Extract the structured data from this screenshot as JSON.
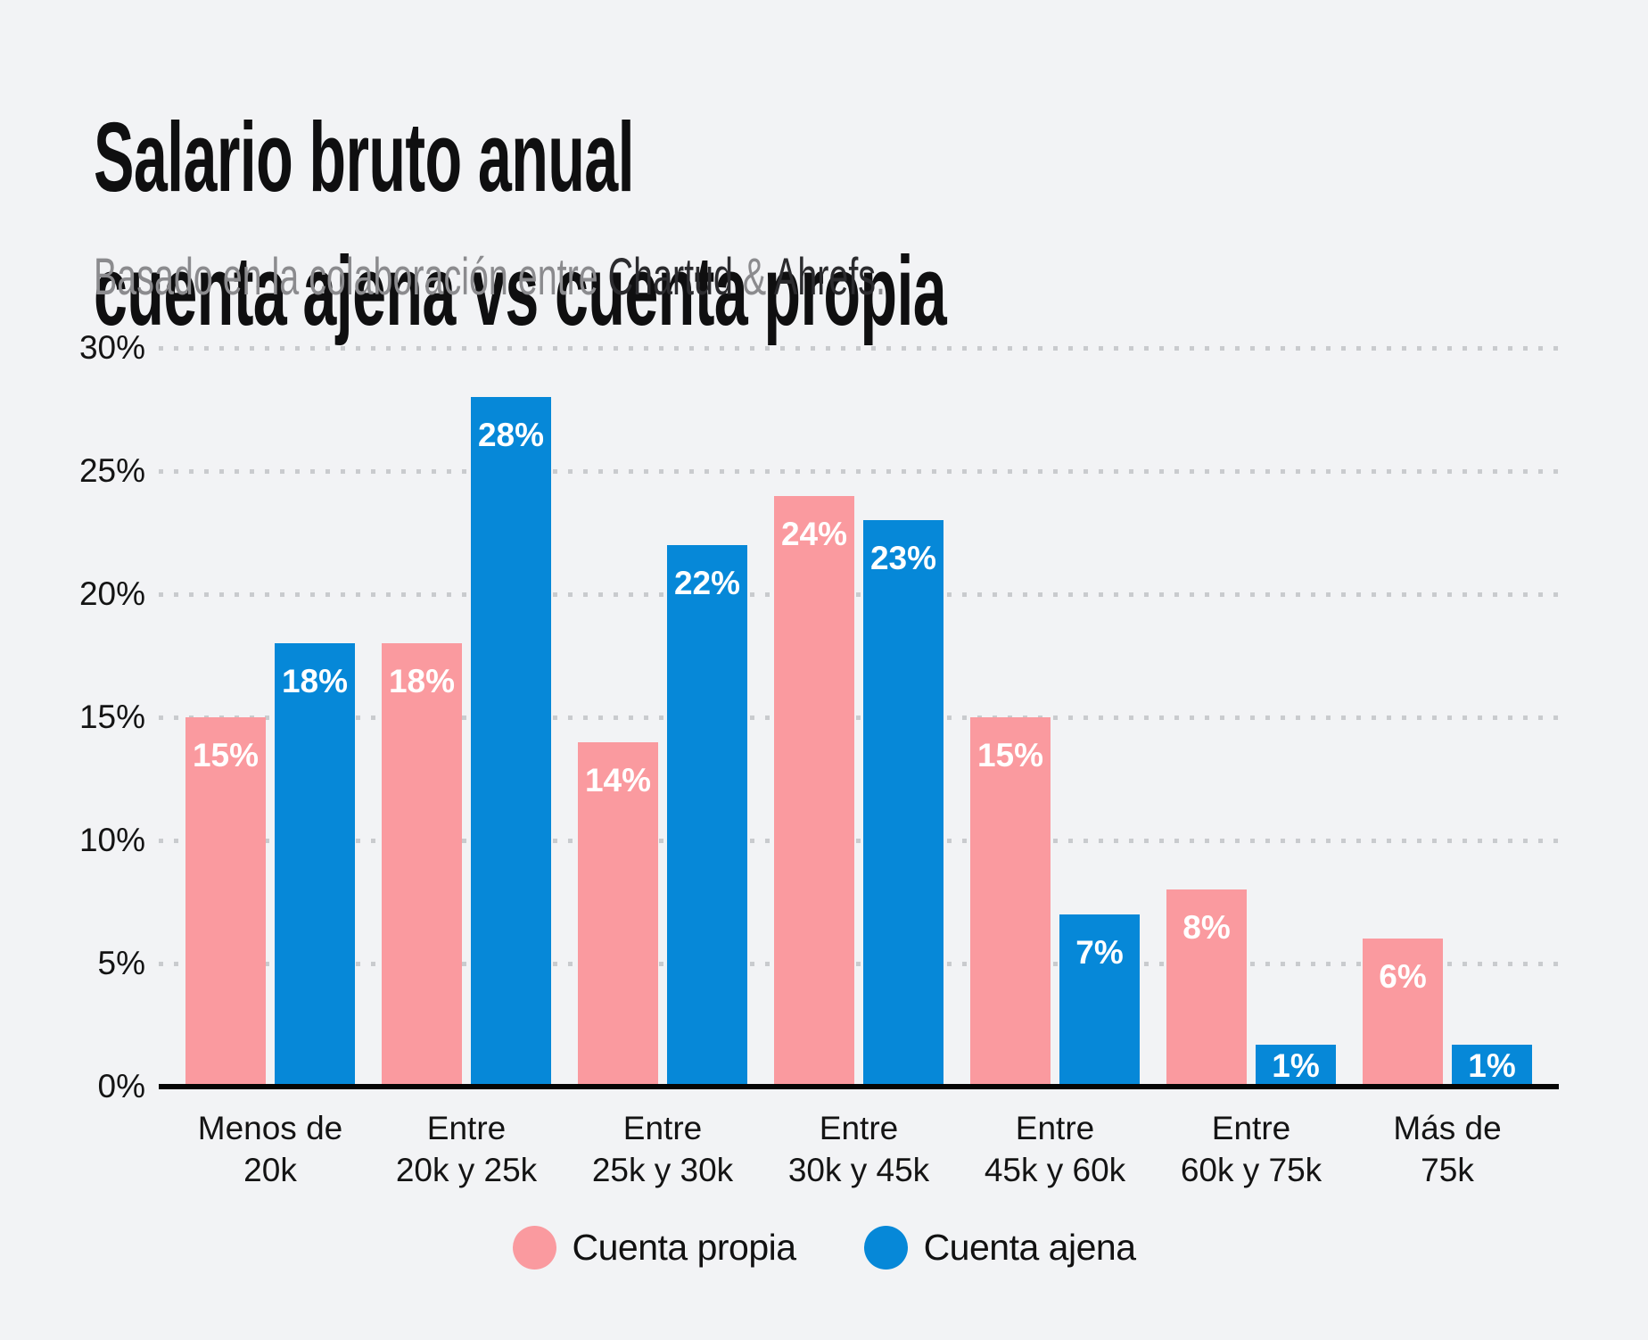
{
  "title": {
    "line1": "Salario bruto anual",
    "line2": "cuenta ajena vs cuenta propia"
  },
  "subtitle": {
    "segments": [
      {
        "text": "Basado en la colaboración entre ",
        "muted": true
      },
      {
        "text": "Chartud",
        "muted": false
      },
      {
        "text": " & ",
        "muted": true
      },
      {
        "text": "Ahrefs",
        "muted": false
      },
      {
        "text": ".",
        "muted": true
      }
    ]
  },
  "chart_data": {
    "type": "bar",
    "categories": [
      [
        "Menos de",
        "20k"
      ],
      [
        "Entre",
        "20k y 25k"
      ],
      [
        "Entre",
        "25k y 30k"
      ],
      [
        "Entre",
        "30k y 45k"
      ],
      [
        "Entre",
        "45k y 60k"
      ],
      [
        "Entre",
        "60k y 75k"
      ],
      [
        "Más de",
        "75k"
      ]
    ],
    "series": [
      {
        "name": "Cuenta propia",
        "color": "#FA9A9F",
        "values": [
          15,
          18,
          14,
          24,
          15,
          8,
          6
        ]
      },
      {
        "name": "Cuenta ajena",
        "color": "#0688D8",
        "values": [
          18,
          28,
          22,
          23,
          7,
          1,
          1
        ]
      }
    ],
    "value_suffix": "%",
    "y_ticks": [
      0,
      5,
      10,
      15,
      20,
      25,
      30
    ],
    "ylim": [
      0,
      30
    ],
    "grid": "dotted-horizontal",
    "legend_position": "bottom"
  },
  "colors": {
    "background": "#F2F3F5",
    "pink": "#FA9A9F",
    "blue": "#0688D8",
    "grid": "#C9CBCE",
    "axis": "#050505",
    "text_dark": "#111111",
    "text_muted": "#8B8B8E",
    "bar_label": "#FFFFFF"
  }
}
